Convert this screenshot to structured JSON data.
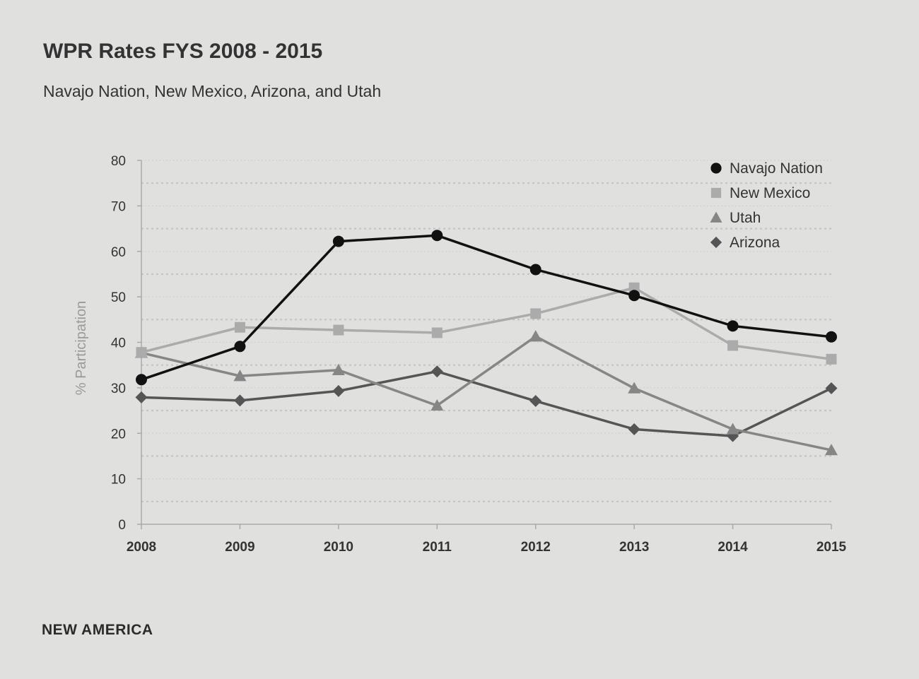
{
  "chart_data": {
    "type": "line",
    "title": "WPR Rates FYS 2008 - 2015",
    "subtitle": "Navajo Nation, New Mexico, Arizona, and Utah",
    "xlabel": "",
    "ylabel": "% Participation",
    "x": [
      "2008",
      "2009",
      "2010",
      "2011",
      "2012",
      "2013",
      "2014",
      "2015"
    ],
    "ylim": [
      0,
      80
    ],
    "yticks": [
      0,
      10,
      20,
      30,
      40,
      50,
      60,
      70,
      80
    ],
    "grid": true,
    "legend_position": "top-right",
    "series": [
      {
        "name": "Navajo Nation",
        "marker": "circle",
        "color": "#111111",
        "values": [
          31.8,
          39.1,
          62.2,
          63.5,
          56.0,
          50.3,
          43.6,
          41.2
        ]
      },
      {
        "name": "New Mexico",
        "marker": "square",
        "color": "#ababab",
        "values": [
          37.8,
          43.3,
          42.7,
          42.1,
          46.3,
          52.0,
          39.3,
          36.3
        ]
      },
      {
        "name": "Utah",
        "marker": "triangle",
        "color": "#868686",
        "values": [
          37.7,
          32.6,
          33.9,
          26.1,
          41.3,
          29.9,
          20.9,
          16.3
        ]
      },
      {
        "name": "Arizona",
        "marker": "diamond",
        "color": "#555555",
        "values": [
          27.9,
          27.2,
          29.3,
          33.6,
          27.1,
          20.9,
          19.4,
          29.9
        ]
      }
    ]
  },
  "footer": {
    "brand": "NEW AMERICA"
  }
}
